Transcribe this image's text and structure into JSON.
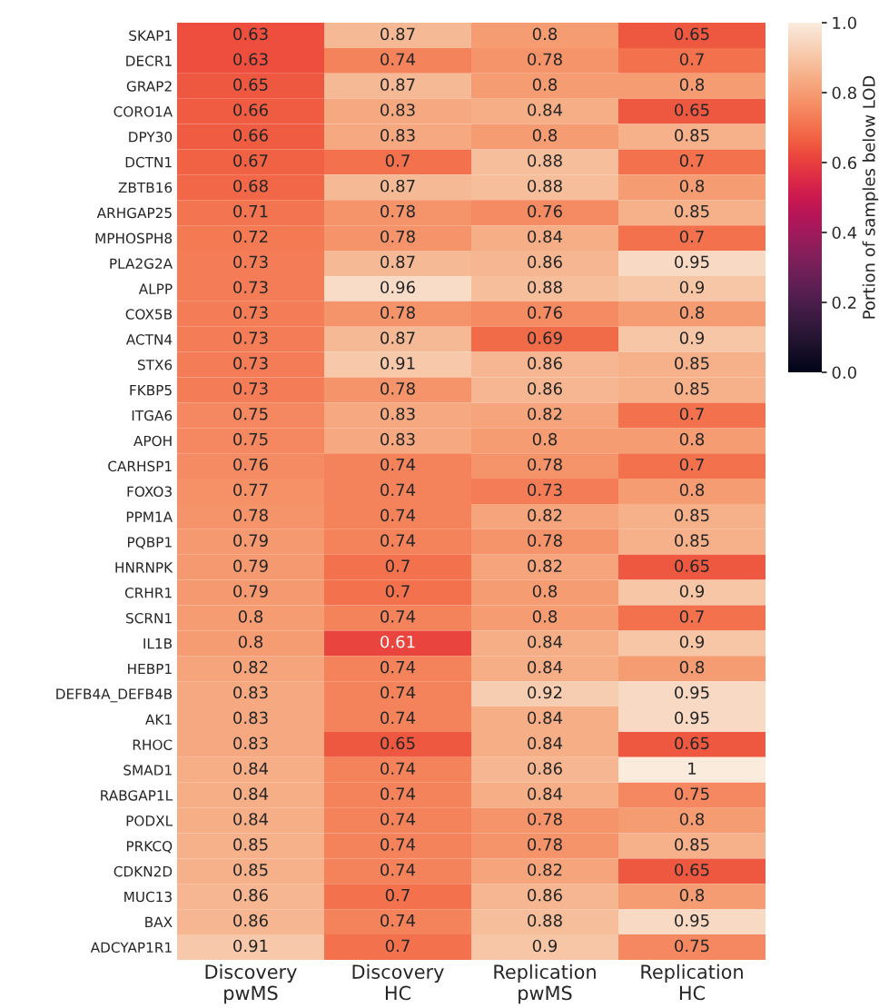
{
  "chart_data": {
    "type": "heatmap",
    "clabel": "Portion of samples below LOD",
    "categories": [
      "Discovery\npwMS",
      "Discovery\nHC",
      "Replication\npwMS",
      "Replication\nHC"
    ],
    "y_categories": [
      "SKAP1",
      "DECR1",
      "GRAP2",
      "CORO1A",
      "DPY30",
      "DCTN1",
      "ZBTB16",
      "ARHGAP25",
      "MPHOSPH8",
      "PLA2G2A",
      "ALPP",
      "COX5B",
      "ACTN4",
      "STX6",
      "FKBP5",
      "ITGA6",
      "APOH",
      "CARHSP1",
      "FOXO3",
      "PPM1A",
      "PQBP1",
      "HNRNPK",
      "CRHR1",
      "SCRN1",
      "IL1B",
      "HEBP1",
      "DEFB4A_DEFB4B",
      "AK1",
      "RHOC",
      "SMAD1",
      "RABGAP1L",
      "PODXL",
      "PRKCQ",
      "CDKN2D",
      "MUC13",
      "BAX",
      "ADCYAP1R1"
    ],
    "cells": [
      [
        0.63,
        0.87,
        0.8,
        0.65
      ],
      [
        0.63,
        0.74,
        0.78,
        0.7
      ],
      [
        0.65,
        0.87,
        0.8,
        0.8
      ],
      [
        0.66,
        0.83,
        0.84,
        0.65
      ],
      [
        0.66,
        0.83,
        0.8,
        0.85
      ],
      [
        0.67,
        0.7,
        0.88,
        0.7
      ],
      [
        0.68,
        0.87,
        0.88,
        0.8
      ],
      [
        0.71,
        0.78,
        0.76,
        0.85
      ],
      [
        0.72,
        0.78,
        0.84,
        0.7
      ],
      [
        0.73,
        0.87,
        0.86,
        0.95
      ],
      [
        0.73,
        0.96,
        0.88,
        0.9
      ],
      [
        0.73,
        0.78,
        0.76,
        0.8
      ],
      [
        0.73,
        0.87,
        0.69,
        0.9
      ],
      [
        0.73,
        0.91,
        0.86,
        0.85
      ],
      [
        0.73,
        0.78,
        0.86,
        0.85
      ],
      [
        0.75,
        0.83,
        0.82,
        0.7
      ],
      [
        0.75,
        0.83,
        0.8,
        0.8
      ],
      [
        0.76,
        0.74,
        0.78,
        0.7
      ],
      [
        0.77,
        0.74,
        0.73,
        0.8
      ],
      [
        0.78,
        0.74,
        0.82,
        0.85
      ],
      [
        0.79,
        0.74,
        0.78,
        0.85
      ],
      [
        0.79,
        0.7,
        0.82,
        0.65
      ],
      [
        0.79,
        0.7,
        0.8,
        0.9
      ],
      [
        0.8,
        0.74,
        0.8,
        0.7
      ],
      [
        0.8,
        0.61,
        0.84,
        0.9
      ],
      [
        0.82,
        0.74,
        0.84,
        0.8
      ],
      [
        0.83,
        0.74,
        0.92,
        0.95
      ],
      [
        0.83,
        0.74,
        0.84,
        0.95
      ],
      [
        0.83,
        0.65,
        0.84,
        0.65
      ],
      [
        0.84,
        0.74,
        0.86,
        1
      ],
      [
        0.84,
        0.74,
        0.84,
        0.75
      ],
      [
        0.84,
        0.74,
        0.78,
        0.8
      ],
      [
        0.85,
        0.74,
        0.78,
        0.85
      ],
      [
        0.85,
        0.74,
        0.82,
        0.65
      ],
      [
        0.86,
        0.7,
        0.86,
        0.8
      ],
      [
        0.86,
        0.74,
        0.88,
        0.95
      ],
      [
        0.91,
        0.7,
        0.9,
        0.75
      ]
    ],
    "data_labels": true,
    "clim": [
      0,
      1
    ],
    "cticks": [
      {
        "value": 0,
        "label": "0.0"
      },
      {
        "value": 0.2,
        "label": "0.2"
      },
      {
        "value": 0.4,
        "label": "0.4"
      },
      {
        "value": 0.6,
        "label": "0.6"
      },
      {
        "value": 0.8,
        "label": "0.8"
      },
      {
        "value": 1,
        "label": "1.0"
      }
    ]
  }
}
